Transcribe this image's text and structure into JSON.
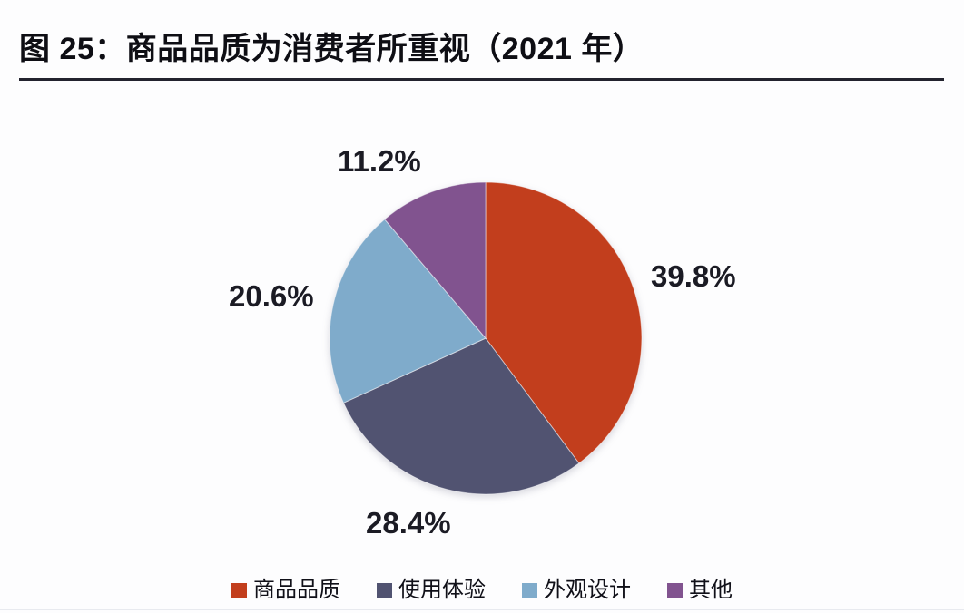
{
  "page": {
    "background": "#fdfdfe"
  },
  "header": {
    "title": "图 25：商品品质为消费者所重视（2021 年）"
  },
  "chart_data": {
    "type": "pie",
    "title": "图 25：商品品质为消费者所重视（2021 年）",
    "categories": [
      "商品品质",
      "使用体验",
      "外观设计",
      "其他"
    ],
    "values": [
      39.8,
      28.4,
      20.6,
      11.2
    ],
    "unit": "%",
    "point_labels": [
      "39.8%",
      "28.4%",
      "20.6%",
      "11.2%"
    ],
    "colors": [
      "#c23e1d",
      "#515371",
      "#7fabcb",
      "#81538f"
    ],
    "start_angle": "12-oclock",
    "direction": "clockwise",
    "legend_position": "bottom",
    "legend": [
      {
        "label": "商品品质",
        "color": "#c23e1d"
      },
      {
        "label": "使用体验",
        "color": "#515371"
      },
      {
        "label": "外观设计",
        "color": "#7fabcb"
      },
      {
        "label": "其他",
        "color": "#81538f"
      }
    ]
  }
}
